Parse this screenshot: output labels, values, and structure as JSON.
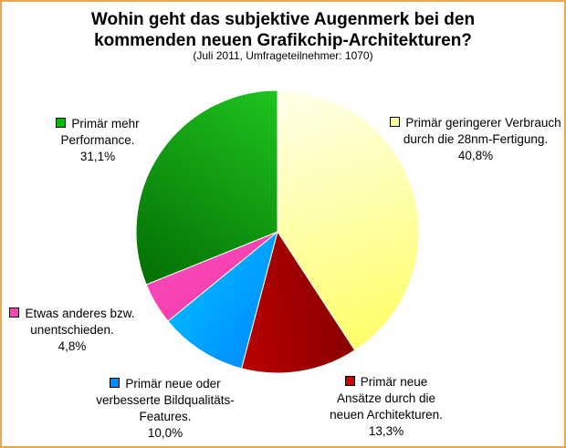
{
  "chart_data": {
    "type": "pie",
    "title_line1": "Wohin geht das subjektive Augenmerk bei den",
    "title_line2": "kommenden neuen Grafikchip-Architekturen?",
    "subtitle": "(Juli 2011, Umfrageteilnehmer: 1070)",
    "slices": [
      {
        "label": "Primär geringerer Verbrauch durch die 28nm-Fertigung.",
        "value_label": "40,8%",
        "value": 40.8,
        "color": "#ffff66",
        "light": "#ffffee"
      },
      {
        "label": "Primär neue Ansätze durch die neuen Architekturen.",
        "value_label": "13,3%",
        "value": 13.3,
        "color": "#dd0000",
        "light": "#660000"
      },
      {
        "label": "Primär neue oder verbesserte Bildqualitäts-Features.",
        "value_label": "10,0%",
        "value": 10.0,
        "color": "#00ddff",
        "light": "#0066ff"
      },
      {
        "label": "Etwas anderes bzw. unentschieden.",
        "value_label": "4,8%",
        "value": 4.8,
        "color": "#ff55cc",
        "light": "#ee3399"
      },
      {
        "label": "Primär mehr Performance.",
        "value_label": "31,1%",
        "value": 31.1,
        "color": "#22cc22",
        "light": "#006600"
      }
    ]
  }
}
